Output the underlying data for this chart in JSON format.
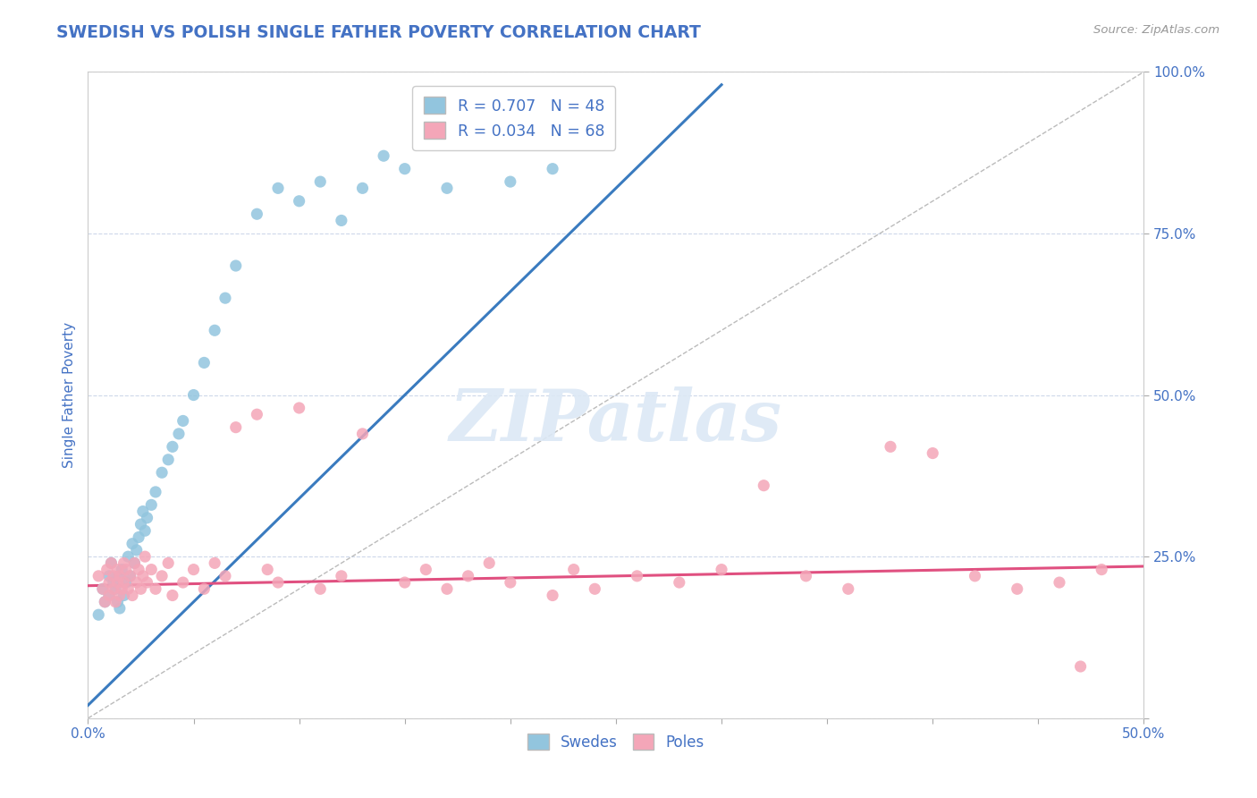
{
  "title": "SWEDISH VS POLISH SINGLE FATHER POVERTY CORRELATION CHART",
  "source_text": "Source: ZipAtlas.com",
  "ylabel": "Single Father Poverty",
  "xlim": [
    0.0,
    0.5
  ],
  "ylim": [
    0.0,
    1.0
  ],
  "xticks": [
    0.0,
    0.05,
    0.1,
    0.15,
    0.2,
    0.25,
    0.3,
    0.35,
    0.4,
    0.45,
    0.5
  ],
  "yticks": [
    0.0,
    0.25,
    0.5,
    0.75,
    1.0
  ],
  "ytick_labels_right": [
    "",
    "25.0%",
    "50.0%",
    "75.0%",
    "100.0%"
  ],
  "blue_R": 0.707,
  "blue_N": 48,
  "pink_R": 0.034,
  "pink_N": 68,
  "blue_color": "#92c5de",
  "pink_color": "#f4a6b8",
  "blue_line_color": "#3a7bbf",
  "pink_line_color": "#e05080",
  "diag_line_color": "#bbbbbb",
  "title_color": "#4472c4",
  "axis_label_color": "#4472c4",
  "tick_color": "#4472c4",
  "background_color": "#ffffff",
  "grid_color": "#c8d4e8",
  "watermark_text": "ZIPatlas",
  "blue_scatter_x": [
    0.005,
    0.007,
    0.008,
    0.01,
    0.01,
    0.011,
    0.012,
    0.013,
    0.014,
    0.015,
    0.015,
    0.016,
    0.017,
    0.018,
    0.019,
    0.02,
    0.021,
    0.022,
    0.023,
    0.024,
    0.025,
    0.026,
    0.027,
    0.028,
    0.03,
    0.032,
    0.035,
    0.038,
    0.04,
    0.043,
    0.045,
    0.05,
    0.055,
    0.06,
    0.065,
    0.07,
    0.08,
    0.09,
    0.1,
    0.11,
    0.12,
    0.13,
    0.14,
    0.15,
    0.16,
    0.17,
    0.2,
    0.22
  ],
  "blue_scatter_y": [
    0.16,
    0.2,
    0.18,
    0.22,
    0.19,
    0.24,
    0.21,
    0.2,
    0.18,
    0.22,
    0.17,
    0.23,
    0.19,
    0.21,
    0.25,
    0.22,
    0.27,
    0.24,
    0.26,
    0.28,
    0.3,
    0.32,
    0.29,
    0.31,
    0.33,
    0.35,
    0.38,
    0.4,
    0.42,
    0.44,
    0.46,
    0.5,
    0.55,
    0.6,
    0.65,
    0.7,
    0.78,
    0.82,
    0.8,
    0.83,
    0.77,
    0.82,
    0.87,
    0.85,
    0.91,
    0.82,
    0.83,
    0.85
  ],
  "pink_scatter_x": [
    0.005,
    0.007,
    0.008,
    0.009,
    0.01,
    0.01,
    0.011,
    0.012,
    0.012,
    0.013,
    0.014,
    0.014,
    0.015,
    0.015,
    0.016,
    0.017,
    0.017,
    0.018,
    0.019,
    0.02,
    0.021,
    0.022,
    0.023,
    0.024,
    0.025,
    0.026,
    0.027,
    0.028,
    0.03,
    0.032,
    0.035,
    0.038,
    0.04,
    0.045,
    0.05,
    0.055,
    0.06,
    0.065,
    0.07,
    0.08,
    0.085,
    0.09,
    0.1,
    0.11,
    0.12,
    0.13,
    0.15,
    0.16,
    0.17,
    0.18,
    0.19,
    0.2,
    0.22,
    0.23,
    0.24,
    0.26,
    0.28,
    0.3,
    0.32,
    0.34,
    0.36,
    0.38,
    0.4,
    0.42,
    0.44,
    0.46,
    0.47,
    0.48
  ],
  "pink_scatter_y": [
    0.22,
    0.2,
    0.18,
    0.23,
    0.21,
    0.19,
    0.24,
    0.2,
    0.22,
    0.18,
    0.21,
    0.23,
    0.19,
    0.22,
    0.2,
    0.24,
    0.21,
    0.23,
    0.2,
    0.22,
    0.19,
    0.24,
    0.21,
    0.23,
    0.2,
    0.22,
    0.25,
    0.21,
    0.23,
    0.2,
    0.22,
    0.24,
    0.19,
    0.21,
    0.23,
    0.2,
    0.24,
    0.22,
    0.45,
    0.47,
    0.23,
    0.21,
    0.48,
    0.2,
    0.22,
    0.44,
    0.21,
    0.23,
    0.2,
    0.22,
    0.24,
    0.21,
    0.19,
    0.23,
    0.2,
    0.22,
    0.21,
    0.23,
    0.36,
    0.22,
    0.2,
    0.42,
    0.41,
    0.22,
    0.2,
    0.21,
    0.08,
    0.23
  ],
  "blue_line_x": [
    0.0,
    0.3
  ],
  "blue_line_y": [
    0.02,
    0.98
  ],
  "pink_line_x": [
    0.0,
    0.5
  ],
  "pink_line_y": [
    0.205,
    0.235
  ],
  "diag_line_x": [
    0.0,
    0.5
  ],
  "diag_line_y": [
    0.0,
    1.0
  ]
}
